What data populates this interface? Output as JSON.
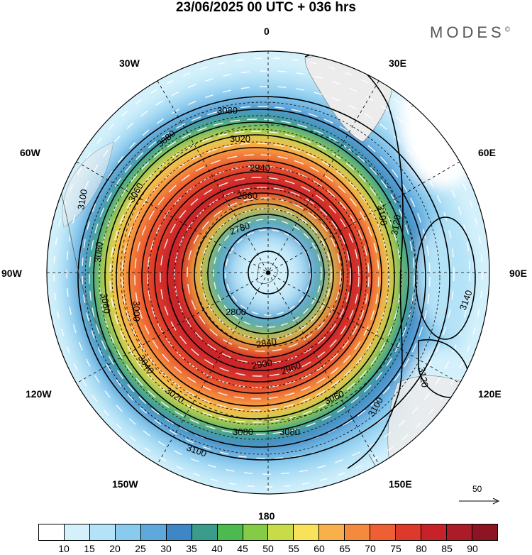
{
  "title": "23/06/2025  00 UTC  + 036 hrs",
  "brand": "MODES",
  "brand_mark": "©",
  "longitude_labels": {
    "n": "0",
    "e30": "30E",
    "e60": "60E",
    "e90": "90E",
    "e120": "120E",
    "e150": "150E",
    "s": "180",
    "w150": "150W",
    "w120": "120W",
    "w90": "90W",
    "w60": "60W",
    "w30": "30W"
  },
  "contour_labels": [
    "3080",
    "3020",
    "2940",
    "2860",
    "2780",
    "2800",
    "2840",
    "2900",
    "2960",
    "3000",
    "3060",
    "3100",
    "3120",
    "3140",
    "3040"
  ],
  "reference_vector": "50",
  "colorbar": {
    "colors": [
      "#ffffff",
      "#d4f1fb",
      "#b4e2f7",
      "#88cbee",
      "#5ea8dc",
      "#3f86c6",
      "#3a9d8c",
      "#4cba4f",
      "#84cc47",
      "#c8dc4a",
      "#fae15a",
      "#f8b14a",
      "#f48a3e",
      "#ee5f33",
      "#de3a2c",
      "#c7222a",
      "#ab1c28",
      "#8b1523"
    ],
    "labels": [
      "10",
      "15",
      "20",
      "25",
      "30",
      "35",
      "40",
      "45",
      "50",
      "55",
      "60",
      "65",
      "70",
      "75",
      "80",
      "85",
      "90"
    ]
  }
}
